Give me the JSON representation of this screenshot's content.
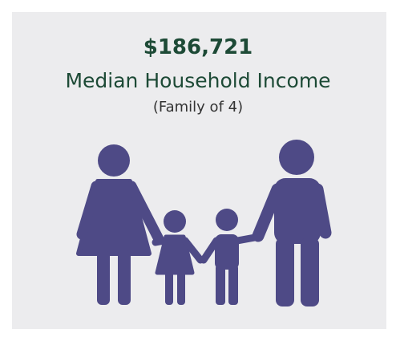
{
  "figure": {
    "value": "$186,721",
    "label": "Median Household Income",
    "note": "(Family of 4)"
  }
}
